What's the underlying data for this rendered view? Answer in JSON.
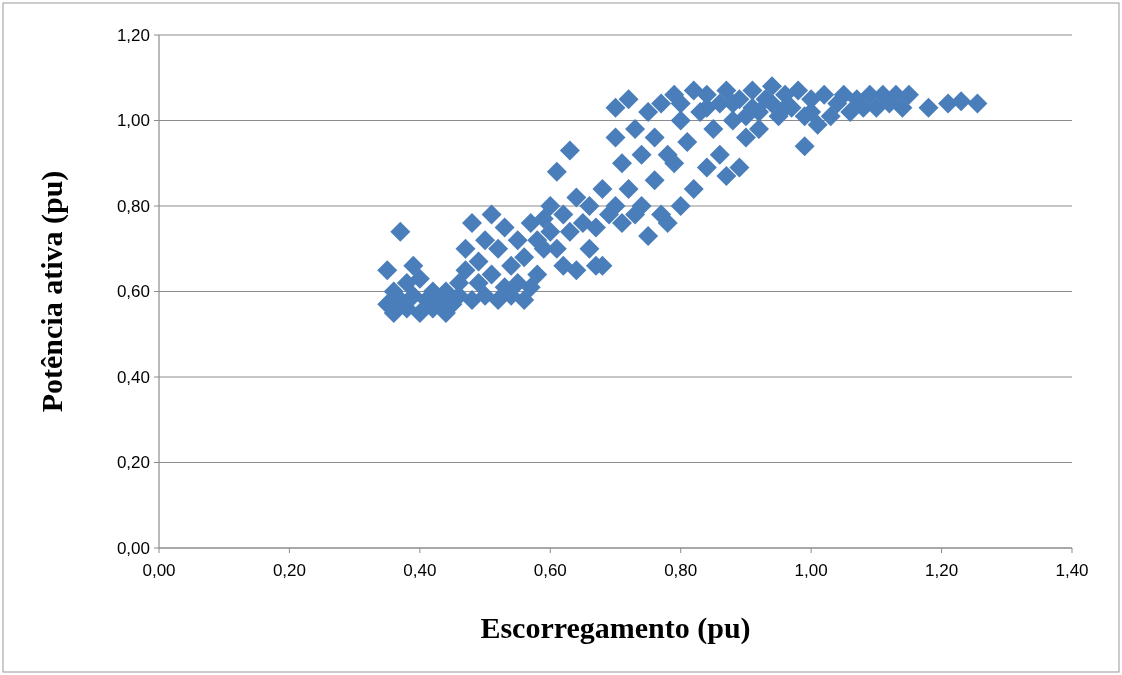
{
  "chart_data": {
    "type": "scatter",
    "xlabel": "Escorregamento (pu)",
    "ylabel": "Potência ativa (pu)",
    "marker": "diamond",
    "grid": "y",
    "xlim": [
      0,
      1.4
    ],
    "ylim": [
      0,
      1.2
    ],
    "xticks": [
      {
        "value": 0,
        "label": "0,00"
      },
      {
        "value": 0.2,
        "label": "0,20"
      },
      {
        "value": 0.4,
        "label": "0,40"
      },
      {
        "value": 0.6,
        "label": "0,60"
      },
      {
        "value": 0.8,
        "label": "0,80"
      },
      {
        "value": 1.0,
        "label": "1,00"
      },
      {
        "value": 1.2,
        "label": "1,20"
      },
      {
        "value": 1.4,
        "label": "1,40"
      }
    ],
    "yticks": [
      {
        "value": 0,
        "label": "0,00"
      },
      {
        "value": 0.2,
        "label": "0,20"
      },
      {
        "value": 0.4,
        "label": "0,40"
      },
      {
        "value": 0.6,
        "label": "0,60"
      },
      {
        "value": 0.8,
        "label": "0,80"
      },
      {
        "value": 1.0,
        "label": "1,00"
      },
      {
        "value": 1.2,
        "label": "1,20"
      }
    ],
    "series": [
      {
        "color": "#4a7ebb",
        "x": [
          0.35,
          0.35,
          0.36,
          0.36,
          0.37,
          0.37,
          0.38,
          0.38,
          0.39,
          0.39,
          0.4,
          0.4,
          0.41,
          0.42,
          0.42,
          0.43,
          0.44,
          0.44,
          0.45,
          0.46,
          0.46,
          0.47,
          0.47,
          0.48,
          0.48,
          0.49,
          0.49,
          0.5,
          0.5,
          0.51,
          0.51,
          0.52,
          0.52,
          0.53,
          0.53,
          0.54,
          0.54,
          0.55,
          0.55,
          0.56,
          0.56,
          0.57,
          0.57,
          0.58,
          0.58,
          0.59,
          0.59,
          0.6,
          0.6,
          0.61,
          0.61,
          0.62,
          0.62,
          0.63,
          0.63,
          0.64,
          0.64,
          0.65,
          0.66,
          0.66,
          0.67,
          0.67,
          0.68,
          0.68,
          0.69,
          0.7,
          0.7,
          0.7,
          0.71,
          0.71,
          0.72,
          0.72,
          0.73,
          0.73,
          0.74,
          0.74,
          0.75,
          0.75,
          0.76,
          0.76,
          0.77,
          0.77,
          0.78,
          0.78,
          0.79,
          0.79,
          0.8,
          0.8,
          0.81,
          0.82,
          0.82,
          0.83,
          0.84,
          0.84,
          0.85,
          0.86,
          0.86,
          0.87,
          0.87,
          0.88,
          0.89,
          0.89,
          0.9,
          0.91,
          0.91,
          0.92,
          0.93,
          0.94,
          0.95,
          0.96,
          0.97,
          0.98,
          0.99,
          0.99,
          1.0,
          1.01,
          1.02,
          1.03,
          1.04,
          1.05,
          1.06,
          1.07,
          1.08,
          1.09,
          1.1,
          1.11,
          1.12,
          1.13,
          1.14,
          1.15,
          1.18,
          1.21,
          1.23,
          1.255,
          0.84,
          0.88,
          0.92,
          0.96,
          1.0,
          0.8,
          0.9,
          0.94
        ],
        "values": [
          0.57,
          0.65,
          0.55,
          0.6,
          0.74,
          0.58,
          0.62,
          0.56,
          0.66,
          0.59,
          0.55,
          0.63,
          0.58,
          0.6,
          0.56,
          0.58,
          0.6,
          0.55,
          0.57,
          0.59,
          0.62,
          0.65,
          0.7,
          0.76,
          0.58,
          0.67,
          0.62,
          0.72,
          0.59,
          0.78,
          0.64,
          0.58,
          0.7,
          0.75,
          0.61,
          0.66,
          0.59,
          0.72,
          0.62,
          0.58,
          0.68,
          0.76,
          0.61,
          0.64,
          0.72,
          0.7,
          0.77,
          0.74,
          0.8,
          0.88,
          0.7,
          0.66,
          0.78,
          0.93,
          0.74,
          0.65,
          0.82,
          0.76,
          0.7,
          0.8,
          0.66,
          0.75,
          0.66,
          0.84,
          0.78,
          0.96,
          1.03,
          0.8,
          0.9,
          0.76,
          1.05,
          0.84,
          0.98,
          0.78,
          0.92,
          0.8,
          1.02,
          0.73,
          0.86,
          0.96,
          0.78,
          1.04,
          0.92,
          0.76,
          1.06,
          0.9,
          0.8,
          1.0,
          0.95,
          1.07,
          0.84,
          1.02,
          0.89,
          1.06,
          0.98,
          1.04,
          0.92,
          0.87,
          1.07,
          1.0,
          0.89,
          1.05,
          0.96,
          1.03,
          1.07,
          0.98,
          1.05,
          1.08,
          1.01,
          1.06,
          1.03,
          1.07,
          0.94,
          1.01,
          1.05,
          0.99,
          1.06,
          1.01,
          1.04,
          1.06,
          1.02,
          1.05,
          1.03,
          1.06,
          1.03,
          1.06,
          1.04,
          1.06,
          1.03,
          1.06,
          1.03,
          1.04,
          1.045,
          1.04,
          1.03,
          1.04,
          1.02,
          1.03,
          1.02,
          1.04,
          1.01,
          1.04
        ]
      }
    ]
  }
}
